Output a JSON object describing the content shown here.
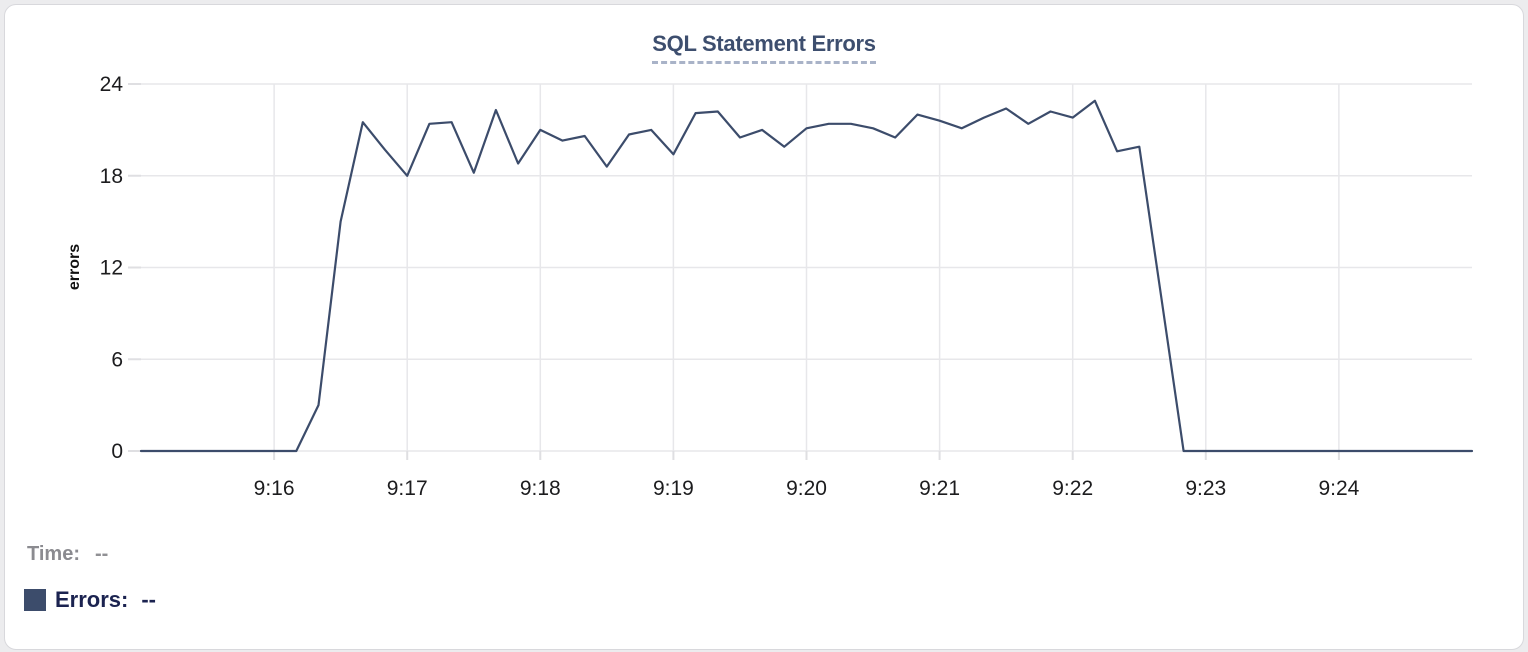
{
  "chart_data": {
    "type": "line",
    "title": "SQL Statement Errors",
    "xlabel": "",
    "ylabel": "errors",
    "x_start": "9:15:00",
    "x_end": "9:25:00",
    "x_step_seconds": 10,
    "x_tick_labels": [
      "9:16",
      "9:17",
      "9:18",
      "9:19",
      "9:20",
      "9:21",
      "9:22",
      "9:23",
      "9:24"
    ],
    "yticks": [
      0,
      6,
      12,
      18,
      24
    ],
    "ylim": [
      0,
      24
    ],
    "grid": true,
    "legend_position": "bottom-left",
    "series": [
      {
        "name": "Errors",
        "color": "#3c4c6b",
        "values": [
          0,
          0,
          0,
          0,
          0,
          0,
          0,
          0,
          3,
          15,
          21.5,
          19.7,
          18,
          21.4,
          21.5,
          18.2,
          22.3,
          18.8,
          21,
          20.3,
          20.6,
          18.6,
          20.7,
          21,
          19.4,
          22.1,
          22.2,
          20.5,
          21,
          19.9,
          21.1,
          21.4,
          21.4,
          21.1,
          20.5,
          22,
          21.6,
          21.1,
          21.8,
          22.4,
          21.4,
          22.2,
          21.8,
          22.9,
          19.6,
          19.9,
          10,
          0,
          0,
          0,
          0,
          0,
          0,
          0,
          0,
          0,
          0,
          0,
          0,
          0,
          0
        ]
      }
    ]
  },
  "readout": {
    "time_label": "Time:",
    "time_value": "--",
    "errors_label": "Errors:",
    "errors_value": "--"
  },
  "colors": {
    "accent_line": "#3c4c6b",
    "legend_swatch": "#3c4c6b",
    "title_text": "#3d4e6e",
    "title_underline": "#a9b3c8",
    "grid_line": "#e7e7ea",
    "tick_mark": "#dfdfe2",
    "axis_text": "#1c1c1e",
    "muted_text": "#8b8b90",
    "dark_text": "#1b2350"
  }
}
